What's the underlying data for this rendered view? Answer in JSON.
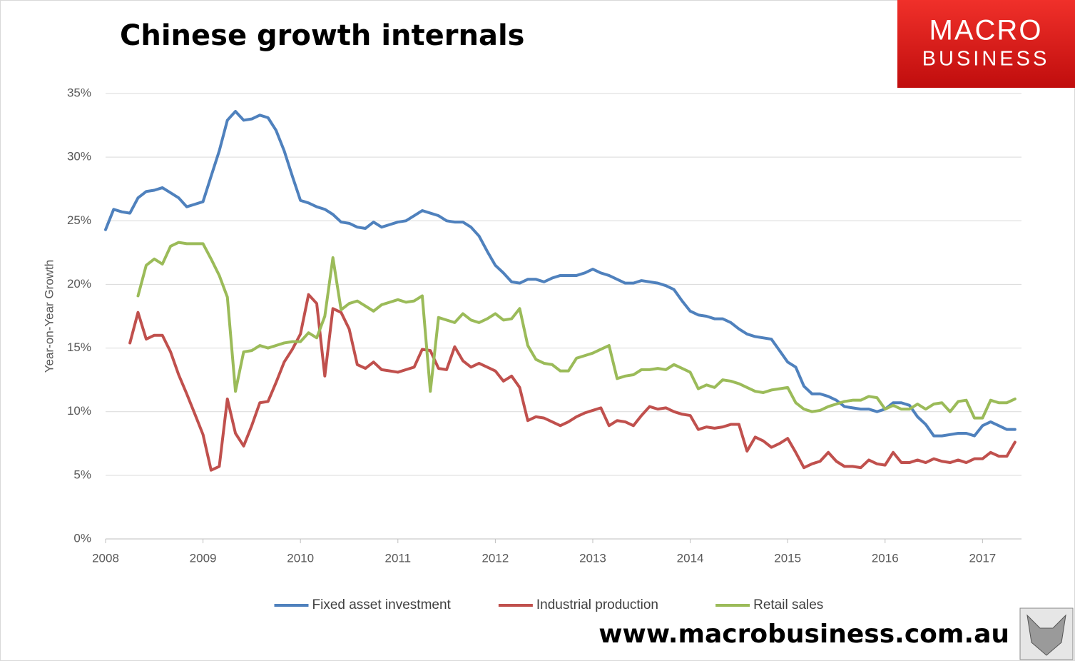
{
  "chart_data": {
    "type": "line",
    "title": "Chinese growth internals",
    "logo_text": [
      "MACRO",
      "BUSINESS"
    ],
    "website": "www.macrobusiness.com.au",
    "y_label": "Year-on-Year Growth",
    "xlim": [
      2008,
      2017.4
    ],
    "xticks": [
      2008,
      2009,
      2010,
      2011,
      2012,
      2013,
      2014,
      2015,
      2016,
      2017
    ],
    "ylim": [
      0,
      35
    ],
    "yticks": [
      {
        "value": 0,
        "label": "0%"
      },
      {
        "value": 5,
        "label": "5%"
      },
      {
        "value": 10,
        "label": "10%"
      },
      {
        "value": 15,
        "label": "15%"
      },
      {
        "value": 20,
        "label": "20%"
      },
      {
        "value": 25,
        "label": "25%"
      },
      {
        "value": 30,
        "label": "30%"
      },
      {
        "value": 35,
        "label": "35%"
      }
    ],
    "grid": true,
    "legend": "bottom",
    "x": [
      2008,
      2008.083,
      2008.167,
      2008.25,
      2008.333,
      2008.417,
      2008.5,
      2008.583,
      2008.667,
      2008.75,
      2008.833,
      2008.917,
      2009,
      2009.083,
      2009.167,
      2009.25,
      2009.333,
      2009.417,
      2009.5,
      2009.583,
      2009.667,
      2009.75,
      2009.833,
      2009.917,
      2010,
      2010.083,
      2010.167,
      2010.25,
      2010.333,
      2010.417,
      2010.5,
      2010.583,
      2010.667,
      2010.75,
      2010.833,
      2010.917,
      2011,
      2011.083,
      2011.167,
      2011.25,
      2011.333,
      2011.417,
      2011.5,
      2011.583,
      2011.667,
      2011.75,
      2011.833,
      2011.917,
      2012,
      2012.083,
      2012.167,
      2012.25,
      2012.333,
      2012.417,
      2012.5,
      2012.583,
      2012.667,
      2012.75,
      2012.833,
      2012.917,
      2013,
      2013.083,
      2013.167,
      2013.25,
      2013.333,
      2013.417,
      2013.5,
      2013.583,
      2013.667,
      2013.75,
      2013.833,
      2013.917,
      2014,
      2014.083,
      2014.167,
      2014.25,
      2014.333,
      2014.417,
      2014.5,
      2014.583,
      2014.667,
      2014.75,
      2014.833,
      2014.917,
      2015,
      2015.083,
      2015.167,
      2015.25,
      2015.333,
      2015.417,
      2015.5,
      2015.583,
      2015.667,
      2015.75,
      2015.833,
      2015.917,
      2016,
      2016.083,
      2016.167,
      2016.25,
      2016.333,
      2016.417,
      2016.5,
      2016.583,
      2016.667,
      2016.75,
      2016.833,
      2016.917,
      2017,
      2017.083,
      2017.167,
      2017.25,
      2017.333
    ],
    "series": [
      {
        "name": "Fixed asset investment",
        "color": "#4f81bd",
        "values": [
          24.3,
          25.9,
          25.7,
          25.6,
          26.8,
          27.3,
          27.4,
          27.6,
          27.2,
          26.8,
          26.1,
          26.3,
          26.5,
          28.5,
          30.5,
          32.9,
          33.6,
          32.9,
          33.0,
          33.3,
          33.1,
          32.1,
          30.5,
          28.5,
          26.6,
          26.4,
          26.1,
          25.9,
          25.5,
          24.9,
          24.8,
          24.5,
          24.4,
          24.9,
          24.5,
          24.7,
          24.9,
          25.0,
          25.4,
          25.8,
          25.6,
          25.4,
          25.0,
          24.9,
          24.9,
          24.5,
          23.8,
          22.6,
          21.5,
          20.9,
          20.2,
          20.1,
          20.4,
          20.4,
          20.2,
          20.5,
          20.7,
          20.7,
          20.7,
          20.9,
          21.2,
          20.9,
          20.7,
          20.4,
          20.1,
          20.1,
          20.3,
          20.2,
          20.1,
          19.9,
          19.6,
          18.7,
          17.9,
          17.6,
          17.5,
          17.3,
          17.3,
          17.0,
          16.5,
          16.1,
          15.9,
          15.8,
          15.7,
          14.8,
          13.9,
          13.5,
          12.0,
          11.4,
          11.4,
          11.2,
          10.9,
          10.4,
          10.3,
          10.2,
          10.2,
          10.0,
          10.2,
          10.7,
          10.7,
          10.5,
          9.6,
          9.0,
          8.1,
          8.1,
          8.2,
          8.3,
          8.3,
          8.1,
          8.9,
          9.2,
          8.9,
          8.6,
          8.6
        ]
      },
      {
        "name": "Industrial production",
        "color": "#c0504d",
        "values": [
          null,
          null,
          null,
          15.4,
          17.8,
          15.7,
          16.0,
          16.0,
          14.7,
          12.9,
          11.4,
          9.8,
          8.2,
          5.4,
          5.7,
          11.0,
          8.3,
          7.3,
          8.9,
          10.7,
          10.8,
          12.3,
          13.9,
          14.9,
          16.1,
          19.2,
          18.5,
          12.8,
          18.1,
          17.8,
          16.5,
          13.7,
          13.4,
          13.9,
          13.3,
          13.2,
          13.1,
          13.3,
          13.5,
          14.9,
          14.8,
          13.4,
          13.3,
          15.1,
          14.0,
          13.5,
          13.8,
          13.5,
          13.2,
          12.4,
          12.8,
          11.9,
          9.3,
          9.6,
          9.5,
          9.2,
          8.9,
          9.2,
          9.6,
          9.9,
          10.1,
          10.3,
          8.9,
          9.3,
          9.2,
          8.9,
          9.7,
          10.4,
          10.2,
          10.3,
          10.0,
          9.8,
          9.7,
          8.6,
          8.8,
          8.7,
          8.8,
          9.0,
          9.0,
          6.9,
          8.0,
          7.7,
          7.2,
          7.5,
          7.9,
          6.8,
          5.6,
          5.9,
          6.1,
          6.8,
          6.1,
          5.7,
          5.7,
          5.6,
          6.2,
          5.9,
          5.8,
          6.8,
          6.0,
          6.0,
          6.2,
          6.0,
          6.3,
          6.1,
          6.0,
          6.2,
          6.0,
          6.3,
          6.3,
          6.8,
          6.5,
          6.5,
          7.6
        ]
      },
      {
        "name": "Retail sales",
        "color": "#9bbb59",
        "values": [
          null,
          null,
          null,
          null,
          19.1,
          21.5,
          22.0,
          21.6,
          23.0,
          23.3,
          23.2,
          23.2,
          23.2,
          22.0,
          20.7,
          19.0,
          11.6,
          14.7,
          14.8,
          15.2,
          15.0,
          15.2,
          15.4,
          15.5,
          15.5,
          16.2,
          15.8,
          17.5,
          22.1,
          18.0,
          18.5,
          18.7,
          18.3,
          17.9,
          18.4,
          18.6,
          18.8,
          18.6,
          18.7,
          19.1,
          11.6,
          17.4,
          17.2,
          17.0,
          17.7,
          17.2,
          17.0,
          17.3,
          17.7,
          17.2,
          17.3,
          18.1,
          15.2,
          14.1,
          13.8,
          13.7,
          13.2,
          13.2,
          14.2,
          14.4,
          14.6,
          14.9,
          15.2,
          12.6,
          12.8,
          12.9,
          13.3,
          13.3,
          13.4,
          13.3,
          13.7,
          13.4,
          13.1,
          11.8,
          12.1,
          11.9,
          12.5,
          12.4,
          12.2,
          11.9,
          11.6,
          11.5,
          11.7,
          11.8,
          11.9,
          10.7,
          10.2,
          10.0,
          10.1,
          10.4,
          10.6,
          10.8,
          10.9,
          10.9,
          11.2,
          11.1,
          10.2,
          10.5,
          10.2,
          10.2,
          10.6,
          10.2,
          10.6,
          10.7,
          10.0,
          10.8,
          10.9,
          9.5,
          9.5,
          10.9,
          10.7,
          10.7,
          11.0
        ]
      }
    ]
  }
}
